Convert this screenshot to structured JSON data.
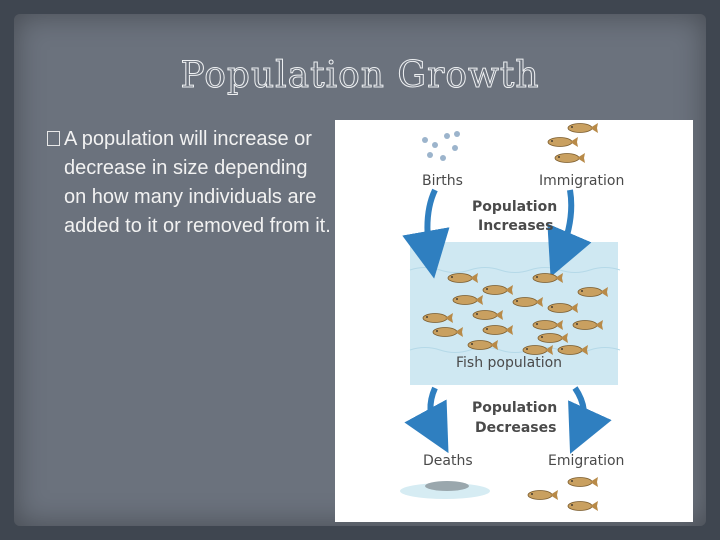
{
  "slide": {
    "title": "Population Growth",
    "bullet": "A population will increase or decrease in size depending on how many individuals are added to it or removed from it.",
    "diagram": {
      "births": "Births",
      "immigration": "Immigration",
      "increases": [
        "Population",
        "Increases"
      ],
      "fish_population": "Fish population",
      "decreases": [
        "Population",
        "Decreases"
      ],
      "deaths": "Deaths",
      "emigration": "Emigration"
    }
  }
}
